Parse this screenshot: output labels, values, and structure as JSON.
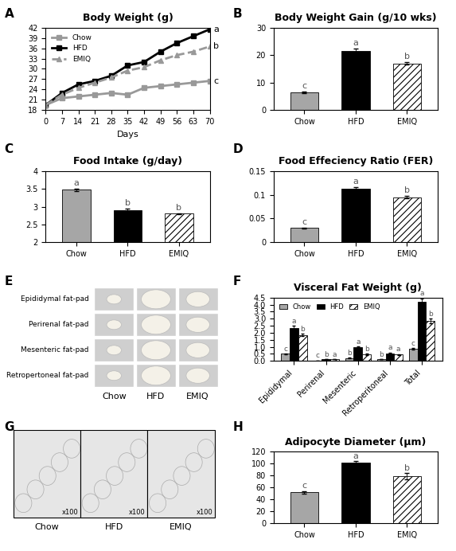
{
  "chart_data": [
    {
      "panel": "A",
      "type": "line",
      "title": "Body Weight (g)",
      "x_label": "Days",
      "x": [
        0,
        7,
        14,
        21,
        28,
        35,
        42,
        49,
        56,
        63,
        70
      ],
      "xlim": [
        0,
        70
      ],
      "xticks": [
        0,
        7,
        14,
        21,
        28,
        35,
        42,
        49,
        56,
        63,
        70
      ],
      "ylim": [
        18,
        42
      ],
      "yticks": [
        18,
        21,
        24,
        27,
        30,
        33,
        36,
        39,
        42
      ],
      "legend": "upper left",
      "series": [
        {
          "name": "Chow",
          "color": "#999999",
          "marker": "square",
          "line_style": "solid",
          "letter": "c",
          "values": [
            19.5,
            21.5,
            22,
            22.5,
            23,
            22.5,
            24.5,
            25,
            25.5,
            26,
            26.5
          ]
        },
        {
          "name": "HFD",
          "color": "#000000",
          "marker": "square",
          "line_style": "solid",
          "letter": "a",
          "values": [
            19.5,
            23,
            25.5,
            26.5,
            28,
            31,
            32,
            35,
            37.5,
            39.5,
            41.5
          ]
        },
        {
          "name": "EMIQ",
          "color": "#999999",
          "marker": "triangle",
          "line_style": "dashed",
          "letter": "b",
          "values": [
            19.5,
            22.5,
            24.5,
            26,
            27.5,
            29.5,
            30.5,
            32.5,
            34,
            35,
            36.5
          ]
        }
      ]
    },
    {
      "panel": "B",
      "type": "bar",
      "title": "Body Weight Gain (g/10 wks)",
      "categories": [
        "Chow",
        "HFD",
        "EMIQ"
      ],
      "values": [
        6.5,
        21.5,
        17
      ],
      "errors": [
        0.3,
        0.8,
        0.5
      ],
      "letters": [
        "c",
        "a",
        "b"
      ],
      "colors": [
        "#a6a6a6",
        "#000000",
        "#ffffff"
      ],
      "ylim": [
        0,
        30
      ],
      "yticks": [
        0,
        10,
        20,
        30
      ]
    },
    {
      "panel": "C",
      "type": "bar",
      "title": "Food Intake (g/day)",
      "categories": [
        "Chow",
        "HFD",
        "EMIQ"
      ],
      "values": [
        3.47,
        2.9,
        2.8
      ],
      "errors": [
        0.04,
        0.04,
        0.02
      ],
      "letters": [
        "a",
        "b",
        "b"
      ],
      "colors": [
        "#a6a6a6",
        "#000000",
        "#ffffff"
      ],
      "ylim": [
        2,
        4
      ],
      "yticks": [
        2,
        2.5,
        3,
        3.5,
        4
      ]
    },
    {
      "panel": "D",
      "type": "bar",
      "title": "Food Effeciency Ratio (FER)",
      "categories": [
        "Chow",
        "HFD",
        "EMIQ"
      ],
      "values": [
        0.03,
        0.113,
        0.095
      ],
      "errors": [
        0.001,
        0.003,
        0.003
      ],
      "letters": [
        "c",
        "a",
        "b"
      ],
      "colors": [
        "#a6a6a6",
        "#000000",
        "#ffffff"
      ],
      "ylim": [
        0,
        0.15
      ],
      "yticks": [
        0,
        0.05,
        0.1,
        0.15
      ]
    },
    {
      "panel": "E",
      "type": "image",
      "rows": [
        "Epididymal fat-pad",
        "Perirenal fat-pad",
        "Mesenteric fat-pad",
        "Retropertoneal fat-pad"
      ],
      "categories": [
        "Chow",
        "HFD",
        "EMIQ"
      ]
    },
    {
      "panel": "F",
      "type": "bar",
      "title": "Visceral Fat Weight (g)",
      "categories": [
        "Epididymal",
        "Perirenal",
        "Mesenteric",
        "Retroperitoneal",
        "Total"
      ],
      "ylim": [
        0,
        4.5
      ],
      "yticks": [
        {
          "value": 0,
          "label": "0.0"
        },
        {
          "value": 0.5,
          "label": "0.5"
        },
        {
          "value": 1,
          "label": "1.0"
        },
        {
          "value": 1.5,
          "label": "1.5"
        },
        {
          "value": 2,
          "label": "2.0"
        },
        {
          "value": 2.5,
          "label": "2.5"
        },
        {
          "value": 3,
          "label": "3.0"
        },
        {
          "value": 3.5,
          "label": "3.5"
        },
        {
          "value": 4,
          "label": "4.0"
        },
        {
          "value": 4.5,
          "label": "4.5"
        }
      ],
      "legend": "upper left",
      "series": [
        {
          "name": "Chow",
          "color": "#a6a6a6",
          "values": [
            0.5,
            0.03,
            0.2,
            0.12,
            0.85
          ],
          "errors": [
            0.03,
            0.005,
            0.02,
            0.01,
            0.05
          ],
          "letters": [
            "c",
            "c",
            "b",
            "b",
            "c"
          ]
        },
        {
          "name": "HFD",
          "color": "#000000",
          "values": [
            2.35,
            0.12,
            0.95,
            0.55,
            4.2
          ],
          "errors": [
            0.15,
            0.01,
            0.08,
            0.05,
            0.25
          ],
          "letters": [
            "a",
            "b",
            "a",
            "a",
            "a"
          ]
        },
        {
          "name": "EMIQ",
          "color": "#ffffff",
          "values": [
            1.85,
            0.12,
            0.45,
            0.45,
            2.85
          ],
          "errors": [
            0.1,
            0.01,
            0.05,
            0.04,
            0.15
          ],
          "letters": [
            "b",
            "a",
            "b",
            "a",
            "b"
          ]
        }
      ]
    },
    {
      "panel": "G",
      "type": "image",
      "categories": [
        "Chow",
        "HFD",
        "EMIQ"
      ],
      "magnification": "x100"
    },
    {
      "panel": "H",
      "type": "bar",
      "title": "Adipocyte Diameter (µm)",
      "categories": [
        "Chow",
        "HFD",
        "EMIQ"
      ],
      "values": [
        52,
        102,
        79
      ],
      "errors": [
        2,
        2,
        5
      ],
      "letters": [
        "c",
        "a",
        "b"
      ],
      "colors": [
        "#a6a6a6",
        "#000000",
        "#ffffff"
      ],
      "ylim": [
        0,
        120
      ],
      "yticks": [
        0,
        20,
        40,
        60,
        80,
        100,
        120
      ]
    }
  ]
}
